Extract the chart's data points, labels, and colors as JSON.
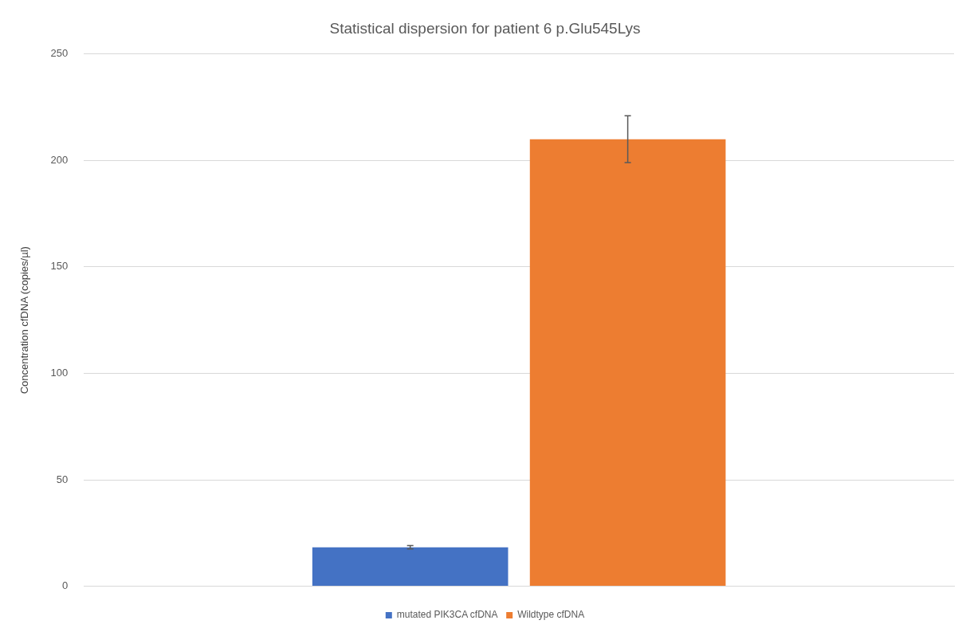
{
  "chart_data": {
    "type": "bar",
    "title": "Statistical dispersion for patient 6 p.Glu545Lys",
    "ylabel": "Concentration cfDNA (copies/µl)",
    "categories": [
      null
    ],
    "series": [
      {
        "name": "mutated PIK3CA cfDNA",
        "color": "#4472c4",
        "values": [
          18.3
        ],
        "errors": [
          0.8
        ]
      },
      {
        "name": "Wildtype cfDNA",
        "color": "#ed7d31",
        "values": [
          210
        ],
        "errors": [
          11
        ]
      }
    ],
    "ylim": [
      0,
      250
    ],
    "yticks": [
      0,
      50,
      100,
      150,
      200,
      250
    ],
    "grid": "y",
    "legend": "bottom"
  }
}
